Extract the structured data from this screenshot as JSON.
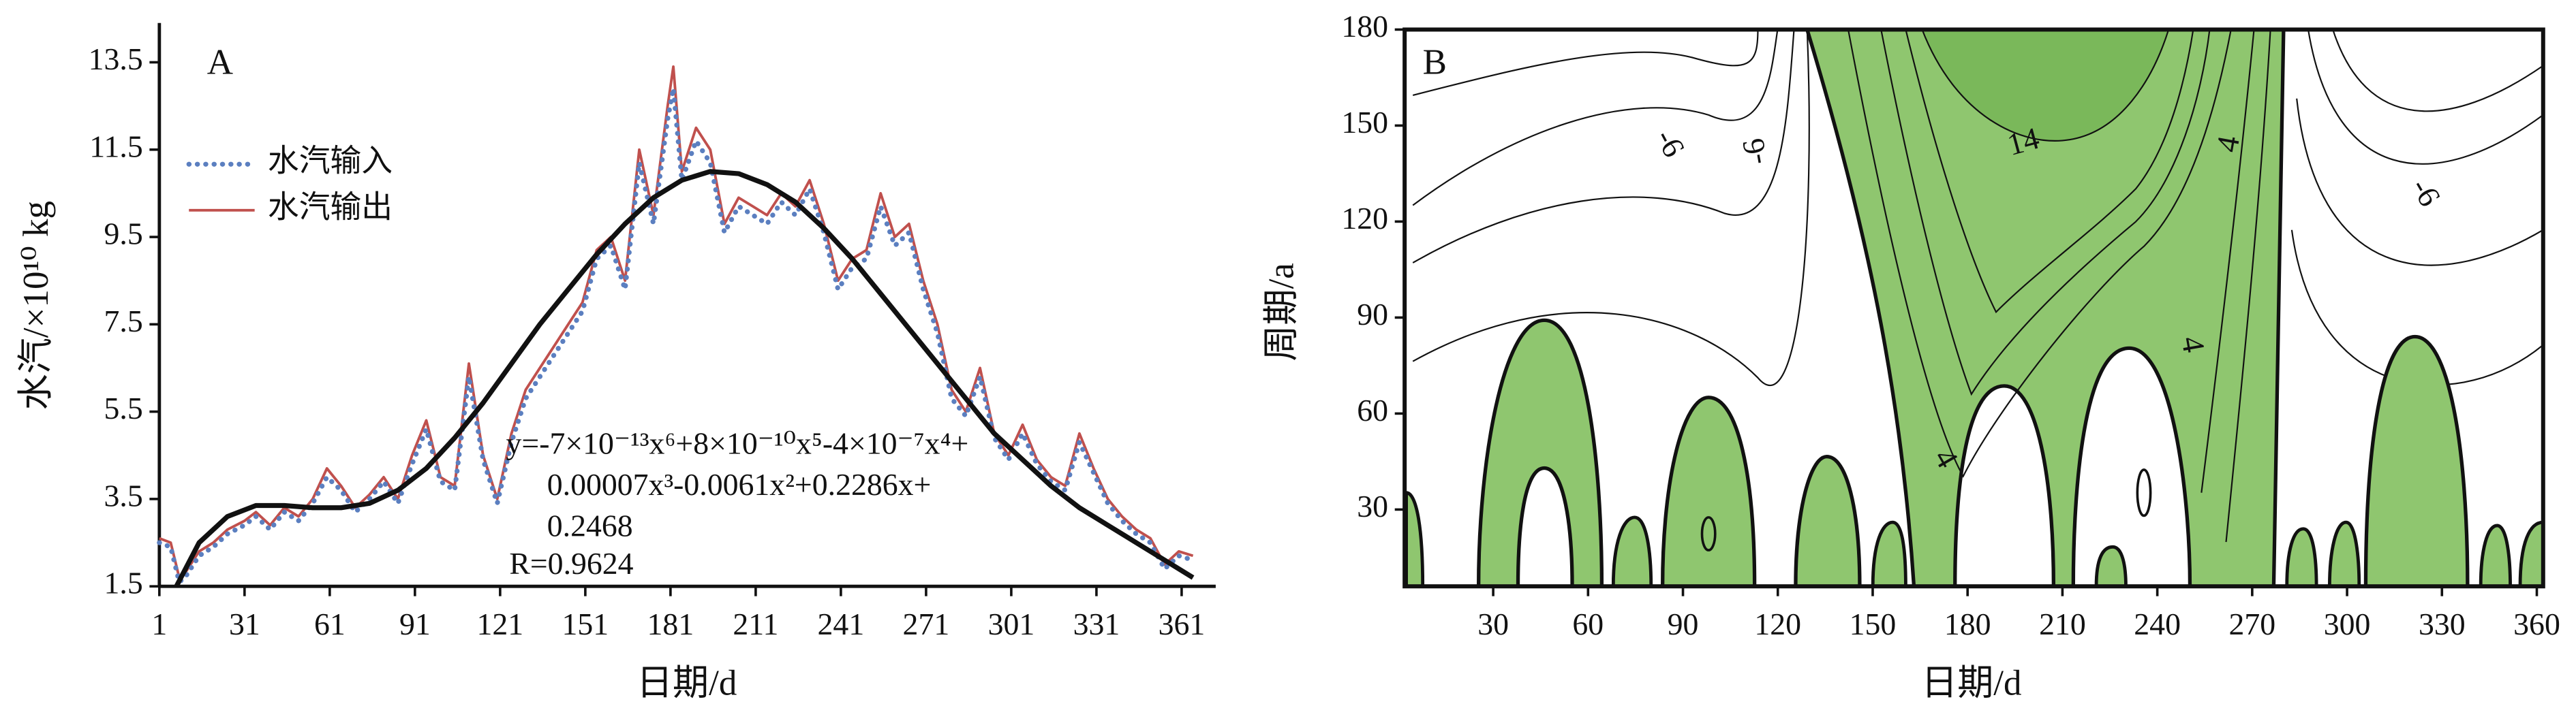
{
  "chart_data": [
    {
      "type": "line",
      "title": "A",
      "x_label": "日期/d",
      "y_label": "水汽/×10¹⁰ kg",
      "xlim": [
        1,
        373
      ],
      "ylim": [
        1.5,
        14.4
      ],
      "xticks": [
        1,
        31,
        61,
        91,
        121,
        151,
        181,
        211,
        241,
        271,
        301,
        331,
        361
      ],
      "yticks": [
        1.5,
        3.5,
        5.5,
        7.5,
        9.5,
        11.5,
        13.5
      ],
      "legend": "upper left",
      "series": [
        {
          "name": "水汽输入",
          "color": "#5b7fc0",
          "style": "dotted",
          "x": [
            1,
            5,
            8,
            10,
            15,
            20,
            25,
            31,
            35,
            40,
            45,
            50,
            55,
            60,
            65,
            70,
            75,
            80,
            85,
            90,
            95,
            100,
            105,
            110,
            115,
            120,
            125,
            130,
            135,
            140,
            145,
            150,
            155,
            160,
            165,
            170,
            175,
            180,
            182,
            185,
            190,
            195,
            200,
            205,
            210,
            215,
            220,
            225,
            230,
            235,
            240,
            245,
            250,
            255,
            260,
            265,
            270,
            275,
            280,
            285,
            290,
            295,
            300,
            305,
            310,
            315,
            320,
            325,
            330,
            335,
            340,
            345,
            350,
            355,
            360,
            365
          ],
          "values": [
            2.5,
            2.4,
            1.6,
            1.7,
            2.2,
            2.4,
            2.7,
            2.9,
            3.1,
            2.8,
            3.2,
            3.0,
            3.4,
            4.0,
            3.7,
            3.2,
            3.5,
            3.9,
            3.4,
            4.3,
            5.1,
            3.9,
            3.7,
            6.3,
            4.4,
            3.4,
            4.8,
            5.8,
            6.3,
            6.8,
            7.3,
            7.8,
            9.0,
            9.3,
            8.3,
            11.2,
            9.8,
            12.2,
            12.9,
            10.8,
            11.7,
            11.2,
            9.6,
            10.2,
            10.0,
            9.8,
            10.3,
            10.0,
            10.6,
            9.6,
            8.3,
            8.8,
            9.0,
            10.2,
            9.3,
            9.6,
            8.3,
            7.3,
            5.8,
            5.4,
            6.3,
            4.9,
            4.4,
            5.0,
            4.3,
            3.9,
            3.7,
            4.8,
            4.1,
            3.4,
            3.0,
            2.7,
            2.5,
            1.9,
            2.2,
            2.1
          ]
        },
        {
          "name": "水汽输出",
          "color": "#c0504d",
          "style": "solid",
          "x": [
            1,
            5,
            8,
            10,
            15,
            20,
            25,
            31,
            35,
            40,
            45,
            50,
            55,
            60,
            65,
            70,
            75,
            80,
            85,
            90,
            95,
            100,
            105,
            110,
            115,
            120,
            125,
            130,
            135,
            140,
            145,
            150,
            155,
            160,
            165,
            170,
            175,
            180,
            182,
            185,
            190,
            195,
            200,
            205,
            210,
            215,
            220,
            225,
            230,
            235,
            240,
            245,
            250,
            255,
            260,
            265,
            270,
            275,
            280,
            285,
            290,
            295,
            300,
            305,
            310,
            315,
            320,
            325,
            330,
            335,
            340,
            345,
            350,
            355,
            360,
            365
          ],
          "values": [
            2.6,
            2.5,
            1.7,
            1.8,
            2.3,
            2.5,
            2.8,
            3.0,
            3.2,
            2.9,
            3.3,
            3.1,
            3.5,
            4.2,
            3.8,
            3.3,
            3.6,
            4.0,
            3.5,
            4.5,
            5.3,
            4.0,
            3.8,
            6.6,
            4.5,
            3.5,
            5.0,
            6.0,
            6.5,
            7.0,
            7.5,
            8.0,
            9.2,
            9.5,
            8.5,
            11.5,
            10.0,
            12.5,
            13.4,
            11.0,
            12.0,
            11.5,
            9.8,
            10.4,
            10.2,
            10.0,
            10.5,
            10.2,
            10.8,
            9.8,
            8.5,
            9.0,
            9.2,
            10.5,
            9.5,
            9.8,
            8.5,
            7.5,
            6.0,
            5.5,
            6.5,
            5.0,
            4.5,
            5.2,
            4.4,
            4.0,
            3.8,
            5.0,
            4.2,
            3.5,
            3.1,
            2.8,
            2.6,
            2.0,
            2.3,
            2.2
          ]
        },
        {
          "color": "#111111",
          "style": "fit",
          "x": [
            7,
            15,
            25,
            35,
            45,
            55,
            65,
            75,
            85,
            95,
            105,
            115,
            125,
            135,
            145,
            155,
            165,
            175,
            185,
            195,
            205,
            215,
            225,
            235,
            245,
            255,
            265,
            275,
            285,
            295,
            305,
            315,
            325,
            335,
            345,
            355,
            365
          ],
          "values": [
            1.5,
            2.5,
            3.1,
            3.35,
            3.35,
            3.3,
            3.3,
            3.4,
            3.7,
            4.2,
            4.9,
            5.7,
            6.6,
            7.5,
            8.3,
            9.1,
            9.8,
            10.4,
            10.8,
            11.0,
            10.95,
            10.7,
            10.3,
            9.7,
            9.0,
            8.2,
            7.4,
            6.6,
            5.8,
            5.0,
            4.4,
            3.8,
            3.3,
            2.9,
            2.5,
            2.1,
            1.7
          ]
        }
      ],
      "annotations": [
        "y=-7×10⁻¹³x⁶+8×10⁻¹⁰x⁵-4×10⁻⁷x⁴+",
        "0.00007x³-0.0061x²+0.2286x+",
        "0.2468",
        "R=0.9624"
      ]
    },
    {
      "type": "contour",
      "title": "B",
      "x_label": "日期/d",
      "y_label": "周期/a",
      "xlim": [
        2,
        362
      ],
      "ylim": [
        6,
        180
      ],
      "xticks": [
        30,
        60,
        90,
        120,
        150,
        180,
        210,
        240,
        270,
        300,
        330,
        360
      ],
      "yticks": [
        30,
        60,
        90,
        120,
        150,
        180
      ],
      "color": "#8fc66f",
      "contour_labels": [
        -6,
        -6,
        14,
        4,
        4,
        4,
        -6
      ]
    }
  ]
}
